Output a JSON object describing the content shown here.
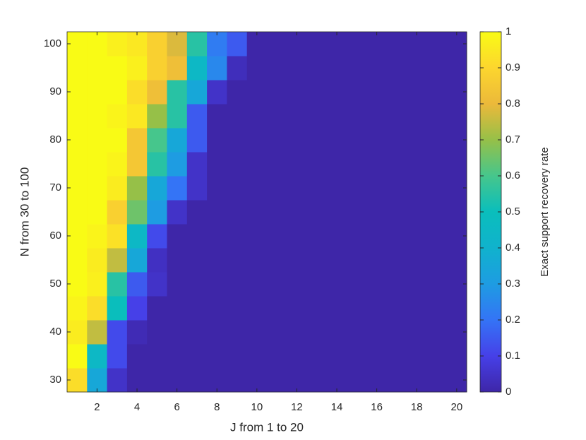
{
  "chart_data": {
    "type": "heatmap",
    "xlabel": "J from 1 to 20",
    "ylabel": "N from 30 to 100",
    "colorbar_label": "Exact support recovery rate",
    "x": [
      1,
      2,
      3,
      4,
      5,
      6,
      7,
      8,
      9,
      10,
      11,
      12,
      13,
      14,
      15,
      16,
      17,
      18,
      19,
      20
    ],
    "y": [
      30,
      35,
      40,
      45,
      50,
      55,
      60,
      65,
      70,
      75,
      80,
      85,
      90,
      95,
      100
    ],
    "z": [
      [
        0.92,
        0.35,
        0.05,
        0,
        0,
        0,
        0,
        0,
        0,
        0,
        0,
        0,
        0,
        0,
        0,
        0,
        0,
        0,
        0,
        0
      ],
      [
        1,
        0.45,
        0.12,
        0,
        0,
        0,
        0,
        0,
        0,
        0,
        0,
        0,
        0,
        0,
        0,
        0,
        0,
        0,
        0,
        0
      ],
      [
        0.96,
        0.75,
        0.12,
        0.02,
        0,
        0,
        0,
        0,
        0,
        0,
        0,
        0,
        0,
        0,
        0,
        0,
        0,
        0,
        0,
        0
      ],
      [
        0.98,
        0.92,
        0.5,
        0.1,
        0,
        0,
        0,
        0,
        0,
        0,
        0,
        0,
        0,
        0,
        0,
        0,
        0,
        0,
        0,
        0
      ],
      [
        1,
        0.97,
        0.55,
        0.15,
        0.05,
        0,
        0,
        0,
        0,
        0,
        0,
        0,
        0,
        0,
        0,
        0,
        0,
        0,
        0,
        0
      ],
      [
        1,
        0.96,
        0.75,
        0.35,
        0.04,
        0,
        0,
        0,
        0,
        0,
        0,
        0,
        0,
        0,
        0,
        0,
        0,
        0,
        0,
        0
      ],
      [
        1,
        0.98,
        0.93,
        0.45,
        0.12,
        0,
        0,
        0,
        0,
        0,
        0,
        0,
        0,
        0,
        0,
        0,
        0,
        0,
        0,
        0
      ],
      [
        1,
        1,
        0.88,
        0.65,
        0.3,
        0.05,
        0,
        0,
        0,
        0,
        0,
        0,
        0,
        0,
        0,
        0,
        0,
        0,
        0,
        0
      ],
      [
        1,
        1,
        0.96,
        0.7,
        0.35,
        0.2,
        0.05,
        0,
        0,
        0,
        0,
        0,
        0,
        0,
        0,
        0,
        0,
        0,
        0,
        0
      ],
      [
        1,
        1,
        0.98,
        0.85,
        0.55,
        0.3,
        0.05,
        0,
        0,
        0,
        0,
        0,
        0,
        0,
        0,
        0,
        0,
        0,
        0,
        0
      ],
      [
        1,
        1,
        1,
        0.85,
        0.6,
        0.35,
        0.15,
        0,
        0,
        0,
        0,
        0,
        0,
        0,
        0,
        0,
        0,
        0,
        0,
        0
      ],
      [
        1,
        1,
        0.98,
        0.95,
        0.7,
        0.55,
        0.15,
        0,
        0,
        0,
        0,
        0,
        0,
        0,
        0,
        0,
        0,
        0,
        0,
        0
      ],
      [
        1,
        1,
        1,
        0.92,
        0.82,
        0.55,
        0.35,
        0.05,
        0,
        0,
        0,
        0,
        0,
        0,
        0,
        0,
        0,
        0,
        0,
        0
      ],
      [
        1,
        1,
        1,
        0.97,
        0.88,
        0.82,
        0.45,
        0.25,
        0.03,
        0,
        0,
        0,
        0,
        0,
        0,
        0,
        0,
        0,
        0,
        0
      ],
      [
        1,
        1,
        0.97,
        0.95,
        0.88,
        0.78,
        0.55,
        0.22,
        0.15,
        0,
        0,
        0,
        0,
        0,
        0,
        0,
        0,
        0,
        0,
        0
      ]
    ],
    "xlim": [
      0.5,
      20.5
    ],
    "xticks": [
      2,
      4,
      6,
      8,
      10,
      12,
      14,
      16,
      18,
      20
    ],
    "ylim": [
      27.5,
      102.5
    ],
    "yticks": [
      30,
      40,
      50,
      60,
      70,
      80,
      90,
      100
    ],
    "clim": [
      0,
      1
    ],
    "cticks": [
      0,
      0.1,
      0.2,
      0.3,
      0.4,
      0.5,
      0.6,
      0.7,
      0.8,
      0.9,
      1
    ],
    "colormap": "parula"
  }
}
